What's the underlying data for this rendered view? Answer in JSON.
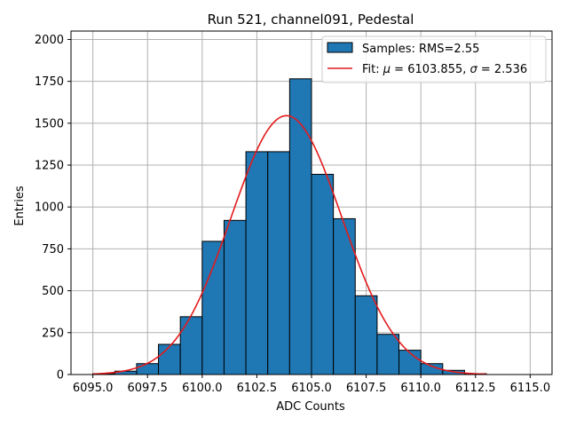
{
  "chart_data": {
    "type": "bar",
    "title": "Run 521, channel091, Pedestal",
    "xlabel": "ADC Counts",
    "ylabel": "Entries",
    "xlim": [
      6094.0,
      6116.0
    ],
    "ylim": [
      0,
      2050
    ],
    "xticks": [
      6095.0,
      6097.5,
      6100.0,
      6102.5,
      6105.0,
      6107.5,
      6110.0,
      6112.5,
      6115.0
    ],
    "xtick_labels": [
      "6095.0",
      "6097.5",
      "6100.0",
      "6102.5",
      "6105.0",
      "6107.5",
      "6110.0",
      "6112.5",
      "6115.0"
    ],
    "yticks": [
      0,
      250,
      500,
      750,
      1000,
      1250,
      1500,
      1750,
      2000
    ],
    "ytick_labels": [
      "0",
      "250",
      "500",
      "750",
      "1000",
      "1250",
      "1500",
      "1750",
      "2000"
    ],
    "grid": true,
    "legend_position": "top-right",
    "bin_width": 1,
    "bins": [
      {
        "x": 6095,
        "value": 5
      },
      {
        "x": 6096,
        "value": 20
      },
      {
        "x": 6097,
        "value": 65
      },
      {
        "x": 6098,
        "value": 180
      },
      {
        "x": 6099,
        "value": 345
      },
      {
        "x": 6100,
        "value": 795
      },
      {
        "x": 6101,
        "value": 920
      },
      {
        "x": 6102,
        "value": 1330
      },
      {
        "x": 6103,
        "value": 1330
      },
      {
        "x": 6104,
        "value": 1765
      },
      {
        "x": 6105,
        "value": 1195
      },
      {
        "x": 6106,
        "value": 930
      },
      {
        "x": 6107,
        "value": 470
      },
      {
        "x": 6108,
        "value": 240
      },
      {
        "x": 6109,
        "value": 145
      },
      {
        "x": 6110,
        "value": 65
      },
      {
        "x": 6111,
        "value": 25
      },
      {
        "x": 6112,
        "value": 5
      }
    ],
    "fit": {
      "mu": 6103.855,
      "sigma": 2.536,
      "amplitude": 1545,
      "x_range": [
        6095,
        6113
      ]
    },
    "legend": [
      {
        "label": "Samples: RMS=2.55",
        "kind": "patch"
      },
      {
        "label_prefix": "Fit: ",
        "mu_symbol": "μ",
        "mu_text": " = 6103.855, ",
        "sigma_symbol": "σ",
        "sigma_text": " = 2.536",
        "kind": "line"
      }
    ],
    "colors": {
      "bar_fill": "#1f77b4",
      "bar_edge": "#000000",
      "fit_line": "#e41a1c",
      "grid": "#b0b0b0"
    }
  }
}
